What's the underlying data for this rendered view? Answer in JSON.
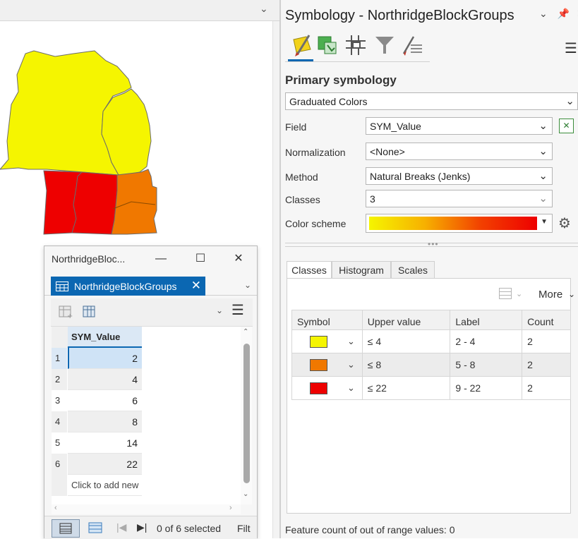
{
  "symbology": {
    "title": "Symbology - NorthridgeBlockGroups",
    "window_controls": [
      "×",
      "⊓",
      "×"
    ],
    "tabs": [
      "primary-symbology",
      "vary-symbology",
      "properties",
      "attribute-filter",
      "label-classes"
    ],
    "primary_heading": "Primary symbology",
    "renderer": "Graduated Colors",
    "field_label": "Field",
    "field_value": "SYM_Value",
    "normalization_label": "Normalization",
    "normalization_value": "<None>",
    "method_label": "Method",
    "method_value": "Natural Breaks (Jenks)",
    "classes_label": "Classes",
    "classes_value": "3",
    "color_scheme_label": "Color scheme",
    "class_tabs": [
      "Classes",
      "Histogram",
      "Scales"
    ],
    "more_label": "More",
    "table_headers": [
      "Symbol",
      "Upper value",
      "Label",
      "Count"
    ],
    "classes": [
      {
        "color": "#f5f500",
        "upper": "≤  4",
        "label": "2 - 4",
        "count": "2"
      },
      {
        "color": "#f07800",
        "upper": "≤  8",
        "label": "5 - 8",
        "count": "2"
      },
      {
        "color": "#ee0000",
        "upper": "≤  22",
        "label": "9 - 22",
        "count": "2"
      }
    ],
    "feature_count_text": "Feature count of out of range values: 0"
  },
  "attribute_table": {
    "window_title": "NorthridgeBloc...",
    "tab_label": "NorthridgeBlockGroups",
    "column_header": "SYM_Value",
    "rows": [
      {
        "num": "1",
        "value": "2"
      },
      {
        "num": "2",
        "value": "4"
      },
      {
        "num": "3",
        "value": "6"
      },
      {
        "num": "4",
        "value": "8"
      },
      {
        "num": "5",
        "value": "14"
      },
      {
        "num": "6",
        "value": "22"
      }
    ],
    "add_new_text": "Click to add new",
    "status_text": "0 of 6 selected",
    "filter_text": "Filt"
  },
  "map": {
    "polygon_colors": {
      "low": "#f5f500",
      "mid": "#f07800",
      "high": "#ee0000"
    }
  }
}
